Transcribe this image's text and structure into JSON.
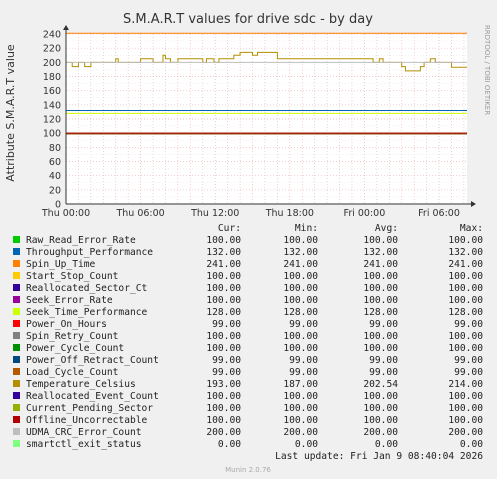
{
  "chart_data": {
    "type": "line",
    "title": "S.M.A.R.T values for drive sdc - by day",
    "ylabel": "Attribute S.M.A.R.T value",
    "watermark": "RRDTOOL / TOBI OETIKER",
    "ylim": [
      0,
      240
    ],
    "y_ticks": [
      0,
      20,
      40,
      60,
      80,
      100,
      120,
      140,
      160,
      180,
      200,
      220,
      240
    ],
    "x_ticks": [
      "Thu 00:00",
      "Thu 06:00",
      "Thu 12:00",
      "Thu 18:00",
      "Fri 00:00",
      "Fri 06:00"
    ],
    "grid": true,
    "legend_position": "bottom",
    "legend_headers": [
      "Cur:",
      "Min:",
      "Avg:",
      "Max:"
    ],
    "series": [
      {
        "name": "Raw_Read_Error_Rate",
        "color": "#00cc00",
        "cur": "100.00",
        "min": "100.00",
        "avg": "100.00",
        "max": "100.00",
        "value": 100
      },
      {
        "name": "Throughput_Performance",
        "color": "#0066b3",
        "cur": "132.00",
        "min": "132.00",
        "avg": "132.00",
        "max": "132.00",
        "value": 132
      },
      {
        "name": "Spin_Up_Time",
        "color": "#ff8000",
        "cur": "241.00",
        "min": "241.00",
        "avg": "241.00",
        "max": "241.00",
        "value": 241
      },
      {
        "name": "Start_Stop_Count",
        "color": "#ffcc00",
        "cur": "100.00",
        "min": "100.00",
        "avg": "100.00",
        "max": "100.00",
        "value": 100
      },
      {
        "name": "Reallocated_Sector_Ct",
        "color": "#330099",
        "cur": "100.00",
        "min": "100.00",
        "avg": "100.00",
        "max": "100.00",
        "value": 100
      },
      {
        "name": "Seek_Error_Rate",
        "color": "#990099",
        "cur": "100.00",
        "min": "100.00",
        "avg": "100.00",
        "max": "100.00",
        "value": 100
      },
      {
        "name": "Seek_Time_Performance",
        "color": "#ccff00",
        "cur": "128.00",
        "min": "128.00",
        "avg": "128.00",
        "max": "128.00",
        "value": 128
      },
      {
        "name": "Power_On_Hours",
        "color": "#ff0000",
        "cur": "99.00",
        "min": "99.00",
        "avg": "99.00",
        "max": "99.00",
        "value": 99
      },
      {
        "name": "Spin_Retry_Count",
        "color": "#808080",
        "cur": "100.00",
        "min": "100.00",
        "avg": "100.00",
        "max": "100.00",
        "value": 100
      },
      {
        "name": "Power_Cycle_Count",
        "color": "#008f00",
        "cur": "100.00",
        "min": "100.00",
        "avg": "100.00",
        "max": "100.00",
        "value": 100
      },
      {
        "name": "Power_Off_Retract_Count",
        "color": "#00487d",
        "cur": "99.00",
        "min": "99.00",
        "avg": "99.00",
        "max": "99.00",
        "value": 99
      },
      {
        "name": "Load_Cycle_Count",
        "color": "#b35a00",
        "cur": "99.00",
        "min": "99.00",
        "avg": "99.00",
        "max": "99.00",
        "value": 99
      },
      {
        "name": "Temperature_Celsius",
        "color": "#b38f00",
        "cur": "193.00",
        "min": "187.00",
        "avg": "202.54",
        "max": "214.00",
        "x": [
          0,
          0.5,
          1,
          1.5,
          2,
          4,
          4.2,
          6,
          7,
          7.8,
          8,
          8.4,
          9,
          11,
          11.3,
          11.9,
          12.3,
          13.5,
          14,
          15,
          15.4,
          17,
          24.5,
          24.7,
          25.2,
          25.5,
          27,
          27.3,
          28.5,
          28.8,
          29.3,
          29.7,
          31
        ],
        "values": [
          200,
          194,
          200,
          194,
          200,
          205,
          200,
          205,
          200,
          210,
          205,
          200,
          205,
          200,
          205,
          200,
          205,
          210,
          214,
          210,
          214,
          205,
          205,
          200,
          205,
          200,
          194,
          188,
          194,
          200,
          205,
          200,
          193
        ]
      },
      {
        "name": "Reallocated_Event_Count",
        "color": "#330099",
        "cur": "100.00",
        "min": "100.00",
        "avg": "100.00",
        "max": "100.00",
        "value": 100
      },
      {
        "name": "Current_Pending_Sector",
        "color": "#8fb300",
        "cur": "100.00",
        "min": "100.00",
        "avg": "100.00",
        "max": "100.00",
        "value": 100
      },
      {
        "name": "Offline_Uncorrectable",
        "color": "#b30000",
        "cur": "100.00",
        "min": "100.00",
        "avg": "100.00",
        "max": "100.00",
        "value": 100
      },
      {
        "name": "UDMA_CRC_Error_Count",
        "color": "#bebebe",
        "cur": "200.00",
        "min": "200.00",
        "avg": "200.00",
        "max": "200.00",
        "value": 200
      },
      {
        "name": "smartctl_exit_status",
        "color": "#80ff80",
        "cur": "0.00",
        "min": "0.00",
        "avg": "0.00",
        "max": "0.00",
        "value": 0
      }
    ]
  },
  "footer": {
    "last_update": "Last update: Fri Jan  9 08:40:04 2026",
    "munin": "Munin 2.0.76"
  }
}
